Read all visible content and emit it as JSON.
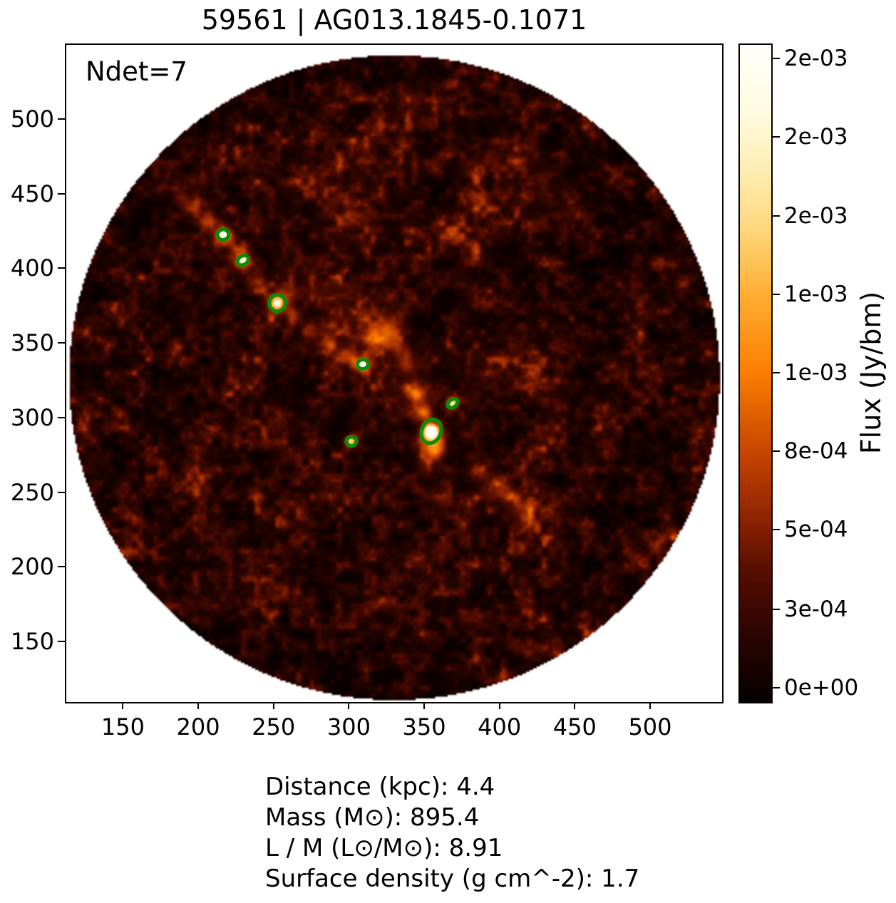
{
  "title": "59561 | AG013.1845-0.1071",
  "annotation": "Ndet=7",
  "caption": {
    "lines": [
      "Distance (kpc): 4.4",
      "Mass (M⊙): 895.4",
      "L / M (L⊙/M⊙): 8.91",
      "Surface density (g cm^-2): 1.7"
    ]
  },
  "chart_data": {
    "type": "heatmap",
    "title": "59561 | AG013.1845-0.1071",
    "annotation": "Ndet=7",
    "xlim": [
      112.4,
      547.8
    ],
    "ylim": [
      109.4,
      549.7
    ],
    "x_ticks": [
      150,
      200,
      250,
      300,
      350,
      400,
      450,
      500
    ],
    "y_ticks": [
      150,
      200,
      250,
      300,
      350,
      400,
      450,
      500
    ],
    "grid": false,
    "field_of_view": {
      "center": [
        330.3,
        326.7
      ],
      "radius": 216,
      "outside_color": "#ffffff"
    },
    "colorbar": {
      "label": "Flux (Jy/bm)",
      "tick_labels": [
        "2e-03",
        "2e-03",
        "2e-03",
        "1e-03",
        "1e-03",
        "8e-04",
        "5e-04",
        "3e-04",
        "0e+00"
      ],
      "tick_fracs_from_top": [
        0.021,
        0.14,
        0.26,
        0.38,
        0.499,
        0.618,
        0.738,
        0.859,
        0.978
      ],
      "colormap_stops": [
        [
          0.0,
          "#050000"
        ],
        [
          0.1,
          "#2a0400"
        ],
        [
          0.2,
          "#570d00"
        ],
        [
          0.3,
          "#9a2a02"
        ],
        [
          0.38,
          "#c64500"
        ],
        [
          0.5,
          "#fb7d00"
        ],
        [
          0.62,
          "#ffae33"
        ],
        [
          0.72,
          "#fed77d"
        ],
        [
          0.8,
          "#feecae"
        ],
        [
          0.9,
          "#fffbe2"
        ],
        [
          1.0,
          "#fffffa"
        ]
      ]
    },
    "detections": {
      "count": 7,
      "color": "#0a8a0a",
      "ellipses": [
        {
          "x": 216.5,
          "y": 422.6,
          "rx": 3.8,
          "ry": 3.5,
          "rot": -15
        },
        {
          "x": 229.7,
          "y": 405.4,
          "rx": 4.0,
          "ry": 2.9,
          "rot": -32
        },
        {
          "x": 252.5,
          "y": 376.8,
          "rx": 5.3,
          "ry": 5.6,
          "rot": 15
        },
        {
          "x": 309.3,
          "y": 335.7,
          "rx": 3.6,
          "ry": 3.1,
          "rot": -10
        },
        {
          "x": 368.9,
          "y": 309.5,
          "rx": 3.8,
          "ry": 2.6,
          "rot": -38
        },
        {
          "x": 354.7,
          "y": 290.8,
          "rx": 6.4,
          "ry": 8.2,
          "rot": 23
        },
        {
          "x": 301.7,
          "y": 284.1,
          "rx": 3.4,
          "ry": 3.1,
          "rot": 0
        }
      ]
    },
    "bright_regions": [
      [
        216.5,
        422.6,
        1.8,
        1.0
      ],
      [
        216.5,
        422.6,
        4.5,
        0.35
      ],
      [
        224,
        414,
        3.5,
        0.2
      ],
      [
        229.7,
        405.4,
        2.0,
        0.7
      ],
      [
        229.7,
        405.4,
        4.5,
        0.28
      ],
      [
        240,
        392,
        3.5,
        0.22
      ],
      [
        252.5,
        376.8,
        2.6,
        0.6
      ],
      [
        252.5,
        376.8,
        5.5,
        0.26
      ],
      [
        263,
        367,
        4.0,
        0.2
      ],
      [
        275,
        358,
        4.5,
        0.2
      ],
      [
        287,
        350,
        4.5,
        0.22
      ],
      [
        298,
        342,
        4.0,
        0.22
      ],
      [
        309.3,
        335.7,
        2.0,
        0.75
      ],
      [
        309.3,
        335.7,
        4.5,
        0.28
      ],
      [
        318,
        352,
        6.0,
        0.24
      ],
      [
        326,
        360,
        6.0,
        0.2
      ],
      [
        332,
        348,
        5.0,
        0.22
      ],
      [
        338,
        336,
        5.0,
        0.2
      ],
      [
        345,
        316,
        4.5,
        0.28
      ],
      [
        350,
        304,
        4.0,
        0.32
      ],
      [
        354.7,
        290.5,
        2.3,
        1.2
      ],
      [
        354.7,
        291,
        5.0,
        0.5
      ],
      [
        356,
        284,
        6.0,
        0.28
      ],
      [
        358,
        278,
        4.0,
        0.26
      ],
      [
        352,
        272,
        5.0,
        0.18
      ],
      [
        368.9,
        309.5,
        1.9,
        0.6
      ],
      [
        368.9,
        309.5,
        4.0,
        0.22
      ],
      [
        301.7,
        284.1,
        1.9,
        0.55
      ],
      [
        301.7,
        284.1,
        4.0,
        0.2
      ],
      [
        385,
        264,
        5.0,
        0.2
      ],
      [
        397,
        254,
        5.0,
        0.22
      ],
      [
        408,
        246,
        4.5,
        0.18
      ],
      [
        417,
        239,
        5.0,
        0.14
      ],
      [
        196,
        441,
        5.0,
        0.26
      ],
      [
        206,
        433,
        4.0,
        0.2
      ],
      [
        188,
        448,
        4.0,
        0.18
      ],
      [
        240,
        430,
        5.0,
        0.13
      ],
      [
        285,
        455,
        10,
        0.07
      ],
      [
        300,
        445,
        9,
        0.06
      ],
      [
        310,
        365,
        16,
        0.09
      ],
      [
        340,
        320,
        14,
        0.09
      ],
      [
        270,
        390,
        14,
        0.07
      ],
      [
        430,
        450,
        13,
        0.06
      ],
      [
        452,
        437,
        11,
        0.05
      ],
      [
        415,
        470,
        11,
        0.06
      ],
      [
        425,
        235,
        11,
        0.07
      ],
      [
        360,
        250,
        10,
        0.05
      ],
      [
        300,
        430,
        11,
        0.05
      ],
      [
        380,
        420,
        14,
        0.05
      ],
      [
        333,
        508,
        10,
        0.05
      ],
      [
        250,
        300,
        14,
        0.04
      ],
      [
        400,
        330,
        16,
        0.04
      ]
    ]
  }
}
